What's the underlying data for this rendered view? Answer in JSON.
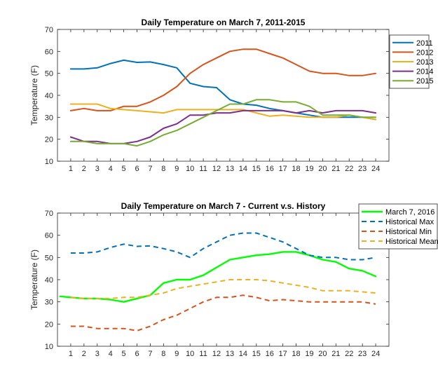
{
  "chart_data": [
    {
      "type": "line",
      "title": "Daily Temperature on March 7, 2011-2015",
      "xlabel": "",
      "ylabel": "Temperature (F)",
      "xlim": [
        0,
        25
      ],
      "ylim": [
        10,
        70
      ],
      "xticks": [
        1,
        2,
        3,
        4,
        5,
        6,
        7,
        8,
        9,
        10,
        11,
        12,
        13,
        14,
        15,
        16,
        17,
        18,
        19,
        20,
        21,
        22,
        23,
        24
      ],
      "yticks": [
        10,
        20,
        30,
        40,
        50,
        60,
        70
      ],
      "legend_position": "top-right",
      "series": [
        {
          "name": "2011",
          "color": "#0072BD",
          "style": "solid",
          "x": [
            1,
            2,
            3,
            4,
            5,
            6,
            7,
            8,
            9,
            10,
            11,
            12,
            13,
            14,
            15,
            16,
            17,
            18,
            19,
            20,
            21,
            22,
            23,
            24
          ],
          "y": [
            52,
            52,
            52.5,
            54.5,
            56,
            55,
            55.2,
            54,
            52.5,
            45.5,
            44,
            43.5,
            38,
            36,
            35.5,
            34,
            33,
            32,
            31,
            30,
            30,
            30,
            30,
            29
          ]
        },
        {
          "name": "2012",
          "color": "#D95319",
          "style": "solid",
          "x": [
            1,
            2,
            3,
            4,
            5,
            6,
            7,
            8,
            9,
            10,
            11,
            12,
            13,
            14,
            15,
            16,
            17,
            18,
            19,
            20,
            21,
            22,
            23,
            24
          ],
          "y": [
            33,
            34,
            33,
            33,
            35,
            35,
            37,
            40,
            44,
            50,
            54,
            57,
            60,
            61,
            61,
            59,
            57,
            54,
            51,
            50,
            50,
            49,
            49,
            50
          ]
        },
        {
          "name": "2013",
          "color": "#EDB120",
          "style": "solid",
          "x": [
            1,
            2,
            3,
            4,
            5,
            6,
            7,
            8,
            9,
            10,
            11,
            12,
            13,
            14,
            15,
            16,
            17,
            18,
            19,
            20,
            21,
            22,
            23,
            24
          ],
          "y": [
            36,
            36,
            36,
            34,
            33.5,
            33,
            32.5,
            32,
            33.5,
            33.5,
            33.5,
            33.5,
            33.5,
            33.5,
            32,
            30.5,
            31,
            30.5,
            30,
            30,
            30,
            31,
            30,
            29
          ]
        },
        {
          "name": "2014",
          "color": "#7E2F8E",
          "style": "solid",
          "x": [
            1,
            2,
            3,
            4,
            5,
            6,
            7,
            8,
            9,
            10,
            11,
            12,
            13,
            14,
            15,
            16,
            17,
            18,
            19,
            20,
            21,
            22,
            23,
            24
          ],
          "y": [
            21,
            19,
            19,
            18,
            18,
            19,
            21,
            25,
            27,
            31,
            31,
            32,
            32,
            33,
            33,
            33,
            33,
            32,
            33,
            32,
            33,
            33,
            33,
            32
          ]
        },
        {
          "name": "2015",
          "color": "#77AC30",
          "style": "solid",
          "x": [
            1,
            2,
            3,
            4,
            5,
            6,
            7,
            8,
            9,
            10,
            11,
            12,
            13,
            14,
            15,
            16,
            17,
            18,
            19,
            20,
            21,
            22,
            23,
            24
          ],
          "y": [
            19,
            19,
            18,
            18,
            18,
            17,
            19,
            22,
            24,
            27,
            30,
            33,
            36,
            36,
            38,
            38,
            37,
            37,
            35,
            31,
            31,
            31,
            30,
            30
          ]
        }
      ]
    },
    {
      "type": "line",
      "title": "Daily Temperature on March 7 - Current v.s. History",
      "xlabel": "",
      "ylabel": "Temperature (F)",
      "xlim": [
        0,
        25
      ],
      "ylim": [
        10,
        70
      ],
      "xticks": [
        1,
        2,
        3,
        4,
        5,
        6,
        7,
        8,
        9,
        10,
        11,
        12,
        13,
        14,
        15,
        16,
        17,
        18,
        19,
        20,
        21,
        22,
        23,
        24
      ],
      "yticks": [
        10,
        20,
        30,
        40,
        50,
        60,
        70
      ],
      "legend_position": "top-right",
      "series": [
        {
          "name": "March 7, 2016",
          "color": "#00FF00",
          "style": "solid",
          "width": 2.4,
          "x": [
            0.2,
            1,
            2,
            3,
            4,
            5,
            6,
            7,
            8,
            9,
            10,
            11,
            12,
            13,
            14,
            15,
            16,
            17,
            18,
            19,
            20,
            21,
            22,
            23,
            24
          ],
          "y": [
            32.5,
            32,
            31.5,
            31.5,
            31,
            30,
            31.5,
            33,
            38.5,
            40,
            40,
            42,
            45.5,
            49,
            50,
            51,
            51.5,
            52.5,
            52.5,
            51,
            49,
            48,
            45,
            44,
            41.5
          ]
        },
        {
          "name": "Historical Max",
          "color": "#0072BD",
          "style": "dashed",
          "x": [
            1,
            2,
            3,
            4,
            5,
            6,
            7,
            8,
            9,
            10,
            11,
            12,
            13,
            14,
            15,
            16,
            17,
            18,
            19,
            20,
            21,
            22,
            23,
            24
          ],
          "y": [
            52,
            52,
            52.5,
            54.5,
            56,
            55,
            55.2,
            54,
            52.5,
            50,
            54,
            57,
            60,
            61,
            61,
            59,
            57,
            54,
            51,
            50,
            50,
            49,
            49,
            50
          ]
        },
        {
          "name": "Historical Min",
          "color": "#D95319",
          "style": "dashed",
          "x": [
            1,
            2,
            3,
            4,
            5,
            6,
            7,
            8,
            9,
            10,
            11,
            12,
            13,
            14,
            15,
            16,
            17,
            18,
            19,
            20,
            21,
            22,
            23,
            24
          ],
          "y": [
            19,
            19,
            18,
            18,
            18,
            17,
            19,
            22,
            24,
            27,
            30,
            32,
            32,
            33,
            32,
            30.5,
            31,
            30.5,
            30,
            30,
            30,
            30,
            30,
            29
          ]
        },
        {
          "name": "Historical Mean",
          "color": "#EDB120",
          "style": "dashed",
          "x": [
            1,
            2,
            3,
            4,
            5,
            6,
            7,
            8,
            9,
            10,
            11,
            12,
            13,
            14,
            15,
            16,
            17,
            18,
            19,
            20,
            21,
            22,
            23,
            24
          ],
          "y": [
            32,
            31.5,
            31.5,
            31.5,
            32,
            32,
            33,
            34,
            36,
            37,
            38,
            39,
            40,
            40,
            40,
            39.5,
            38.5,
            37.5,
            36.5,
            35,
            35,
            35,
            34.5,
            34
          ]
        }
      ]
    }
  ]
}
